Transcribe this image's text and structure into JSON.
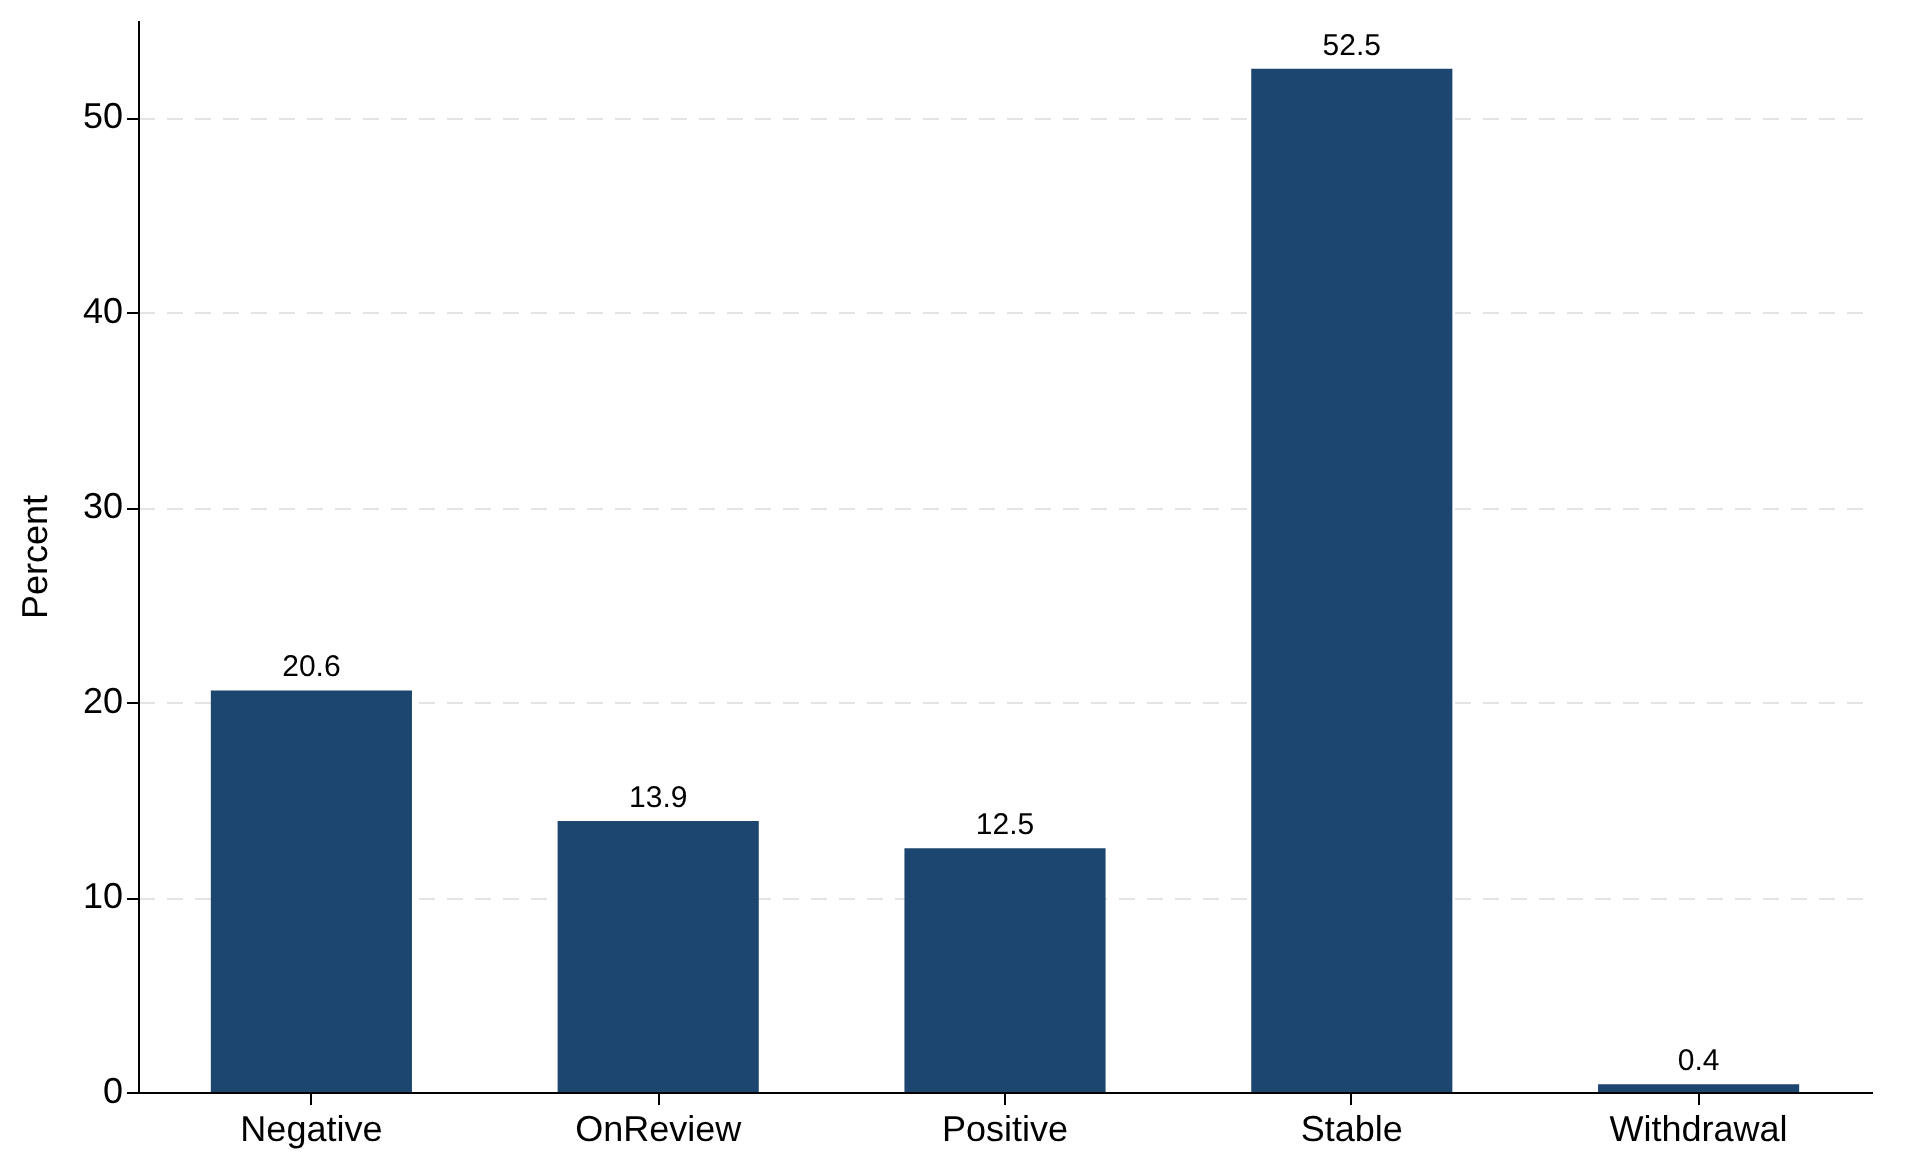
{
  "chart_data": {
    "type": "bar",
    "ylabel": "Percent",
    "categories": [
      "Negative",
      "OnReview",
      "Positive",
      "Stable",
      "Withdrawal"
    ],
    "values": [
      20.6,
      13.9,
      12.5,
      52.5,
      0.4
    ],
    "color": "#1c4670",
    "ylim": [
      0,
      55
    ],
    "yticks": [
      0,
      10,
      20,
      30,
      40,
      50
    ],
    "grid": "y",
    "data_labels": true
  }
}
